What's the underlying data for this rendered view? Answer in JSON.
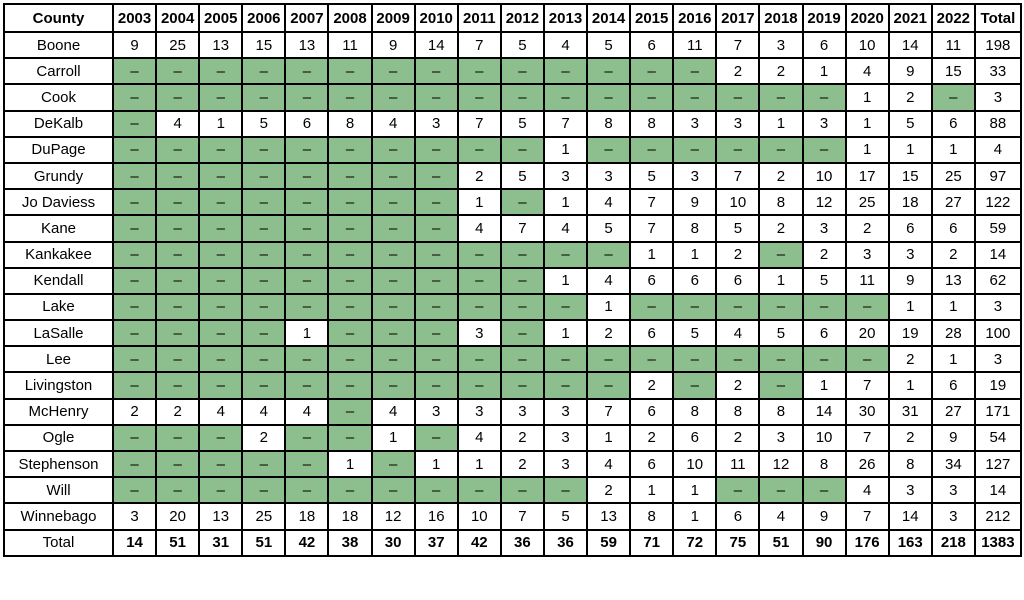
{
  "colors": {
    "no_data_fill": "#8dbe8d",
    "border": "#000000",
    "background": "#ffffff",
    "text": "#000000"
  },
  "chart_data": {
    "type": "table",
    "no_data_marker": "–",
    "columns": [
      "County",
      "2003",
      "2004",
      "2005",
      "2006",
      "2007",
      "2008",
      "2009",
      "2010",
      "2011",
      "2012",
      "2013",
      "2014",
      "2015",
      "2016",
      "2017",
      "2018",
      "2019",
      "2020",
      "2021",
      "2022",
      "Total"
    ],
    "rows": [
      {
        "label": "Boone",
        "bold": false,
        "values": [
          9,
          25,
          13,
          15,
          13,
          11,
          9,
          14,
          7,
          5,
          4,
          5,
          6,
          11,
          7,
          3,
          6,
          10,
          14,
          11,
          198
        ]
      },
      {
        "label": "Carroll",
        "bold": false,
        "values": [
          null,
          null,
          null,
          null,
          null,
          null,
          null,
          null,
          null,
          null,
          null,
          null,
          null,
          null,
          2,
          2,
          1,
          4,
          9,
          15,
          33
        ]
      },
      {
        "label": "Cook",
        "bold": false,
        "values": [
          null,
          null,
          null,
          null,
          null,
          null,
          null,
          null,
          null,
          null,
          null,
          null,
          null,
          null,
          null,
          null,
          null,
          1,
          2,
          null,
          3
        ]
      },
      {
        "label": "DeKalb",
        "bold": false,
        "values": [
          null,
          4,
          1,
          5,
          6,
          8,
          4,
          3,
          7,
          5,
          7,
          8,
          8,
          3,
          3,
          1,
          3,
          1,
          5,
          6,
          88
        ]
      },
      {
        "label": "DuPage",
        "bold": false,
        "values": [
          null,
          null,
          null,
          null,
          null,
          null,
          null,
          null,
          null,
          null,
          1,
          null,
          null,
          null,
          null,
          null,
          null,
          1,
          1,
          1,
          4
        ]
      },
      {
        "label": "Grundy",
        "bold": false,
        "values": [
          null,
          null,
          null,
          null,
          null,
          null,
          null,
          null,
          2,
          5,
          3,
          3,
          5,
          3,
          7,
          2,
          10,
          17,
          15,
          25,
          97
        ]
      },
      {
        "label": "Jo Daviess",
        "bold": false,
        "values": [
          null,
          null,
          null,
          null,
          null,
          null,
          null,
          null,
          1,
          null,
          1,
          4,
          7,
          9,
          10,
          8,
          12,
          25,
          18,
          27,
          122
        ]
      },
      {
        "label": "Kane",
        "bold": false,
        "values": [
          null,
          null,
          null,
          null,
          null,
          null,
          null,
          null,
          4,
          7,
          4,
          5,
          7,
          8,
          5,
          2,
          3,
          2,
          6,
          6,
          59
        ]
      },
      {
        "label": "Kankakee",
        "bold": false,
        "values": [
          null,
          null,
          null,
          null,
          null,
          null,
          null,
          null,
          null,
          null,
          null,
          null,
          1,
          1,
          2,
          null,
          2,
          3,
          3,
          2,
          14
        ]
      },
      {
        "label": "Kendall",
        "bold": false,
        "values": [
          null,
          null,
          null,
          null,
          null,
          null,
          null,
          null,
          null,
          null,
          1,
          4,
          6,
          6,
          6,
          1,
          5,
          11,
          9,
          13,
          62
        ]
      },
      {
        "label": "Lake",
        "bold": false,
        "values": [
          null,
          null,
          null,
          null,
          null,
          null,
          null,
          null,
          null,
          null,
          null,
          1,
          null,
          null,
          null,
          null,
          null,
          null,
          1,
          1,
          3
        ]
      },
      {
        "label": "LaSalle",
        "bold": false,
        "values": [
          null,
          null,
          null,
          null,
          1,
          null,
          null,
          null,
          3,
          null,
          1,
          2,
          6,
          5,
          4,
          5,
          6,
          20,
          19,
          28,
          100
        ]
      },
      {
        "label": "Lee",
        "bold": false,
        "values": [
          null,
          null,
          null,
          null,
          null,
          null,
          null,
          null,
          null,
          null,
          null,
          null,
          null,
          null,
          null,
          null,
          null,
          null,
          2,
          1,
          3
        ]
      },
      {
        "label": "Livingston",
        "bold": false,
        "values": [
          null,
          null,
          null,
          null,
          null,
          null,
          null,
          null,
          null,
          null,
          null,
          null,
          2,
          null,
          2,
          null,
          1,
          7,
          1,
          6,
          19
        ]
      },
      {
        "label": "McHenry",
        "bold": false,
        "values": [
          2,
          2,
          4,
          4,
          4,
          null,
          4,
          3,
          3,
          3,
          3,
          7,
          6,
          8,
          8,
          8,
          14,
          30,
          31,
          27,
          171
        ]
      },
      {
        "label": "Ogle",
        "bold": false,
        "values": [
          null,
          null,
          null,
          2,
          null,
          null,
          1,
          null,
          4,
          2,
          3,
          1,
          2,
          6,
          2,
          3,
          10,
          7,
          2,
          9,
          54
        ]
      },
      {
        "label": "Stephenson",
        "bold": false,
        "values": [
          null,
          null,
          null,
          null,
          null,
          1,
          null,
          1,
          1,
          2,
          3,
          4,
          6,
          10,
          11,
          12,
          8,
          26,
          8,
          34,
          127
        ]
      },
      {
        "label": "Will",
        "bold": false,
        "values": [
          null,
          null,
          null,
          null,
          null,
          null,
          null,
          null,
          null,
          null,
          null,
          2,
          1,
          1,
          null,
          null,
          null,
          4,
          3,
          3,
          14
        ]
      },
      {
        "label": "Winnebago",
        "bold": false,
        "values": [
          3,
          20,
          13,
          25,
          18,
          18,
          12,
          16,
          10,
          7,
          5,
          13,
          8,
          1,
          6,
          4,
          9,
          7,
          14,
          3,
          212
        ]
      },
      {
        "label": "Total",
        "bold": true,
        "values": [
          14,
          51,
          31,
          51,
          42,
          38,
          30,
          37,
          42,
          36,
          36,
          59,
          71,
          72,
          75,
          51,
          90,
          176,
          163,
          218,
          1383
        ]
      }
    ]
  }
}
